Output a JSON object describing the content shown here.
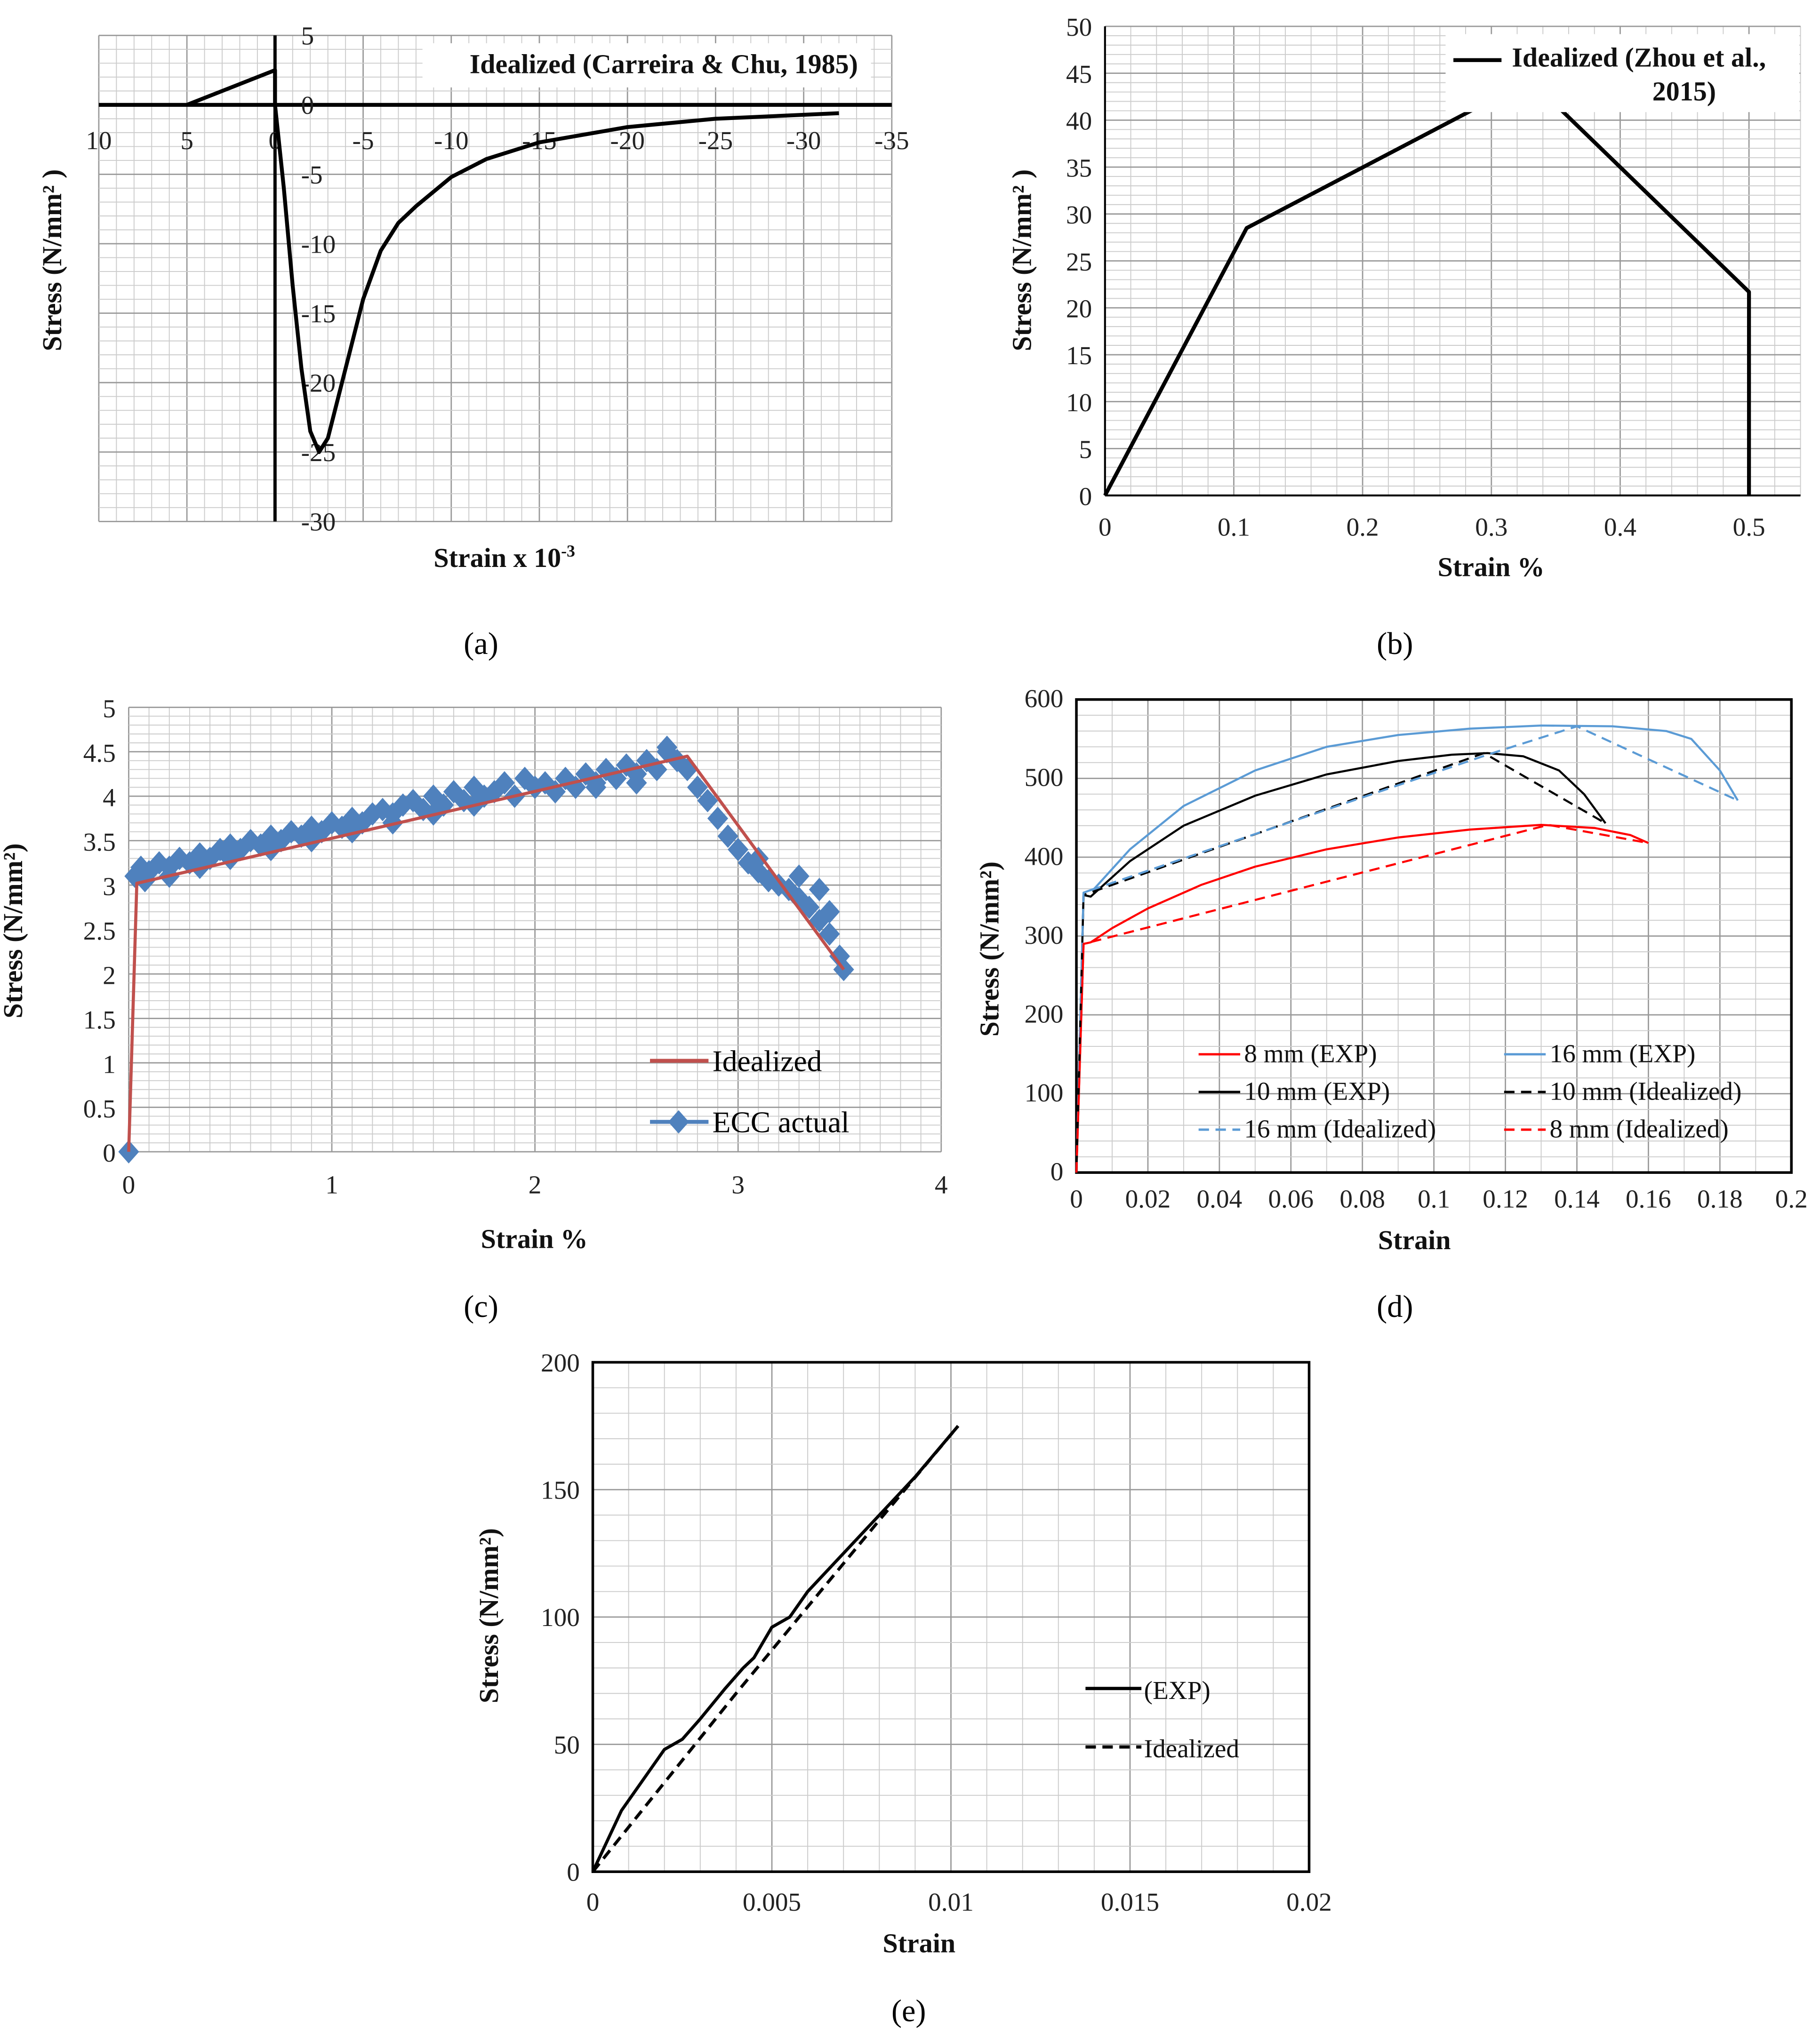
{
  "captions": [
    "(a)",
    "(b)",
    "(c)",
    "(d)",
    "(e)"
  ],
  "chart_data": [
    {
      "type": "line",
      "title": "",
      "xlabel": "Strain x 10",
      "xlabel_sup": "-3",
      "ylabel": "Stress (N/mm² )",
      "xlim": [
        10,
        -35
      ],
      "ylim": [
        -30,
        5
      ],
      "xticks": [
        "10",
        "5",
        "0",
        "-5",
        "-10",
        "-15",
        "-20",
        "-25",
        "-30",
        "-35"
      ],
      "xtick_values": [
        10,
        5,
        0,
        -5,
        -10,
        -15,
        -20,
        -25,
        -30,
        -35
      ],
      "yticks": [
        "5",
        "0",
        "-5",
        "-10",
        "-15",
        "-20",
        "-25",
        "-30"
      ],
      "ytick_values": [
        5,
        0,
        -5,
        -10,
        -15,
        -20,
        -25,
        -30
      ],
      "grid": true,
      "legend_position": "top-right",
      "series": [
        {
          "name": "Idealized (Carreira & Chu, 1985)",
          "color": "#000000",
          "dash": false,
          "x": [
            5,
            0,
            0,
            -0.5,
            -1,
            -1.5,
            -2,
            -2.5,
            -3,
            -4,
            -5,
            -6,
            -7,
            -8,
            -10,
            -12,
            -15,
            -20,
            -25,
            -32
          ],
          "y": [
            0,
            2.5,
            0,
            -6,
            -13,
            -19,
            -23.5,
            -25,
            -24,
            -19,
            -14,
            -10.5,
            -8.5,
            -7.3,
            -5.2,
            -3.9,
            -2.7,
            -1.6,
            -1,
            -0.6
          ]
        }
      ]
    },
    {
      "type": "line",
      "xlabel": "Strain %",
      "ylabel": "Stress (N/mm² )",
      "xlim": [
        0,
        0.54
      ],
      "ylim": [
        0,
        50
      ],
      "xticks": [
        "0",
        "0.1",
        "0.2",
        "0.3",
        "0.4",
        "0.5"
      ],
      "xtick_values": [
        0,
        0.1,
        0.2,
        0.3,
        0.4,
        0.5
      ],
      "yticks": [
        "0",
        "5",
        "10",
        "15",
        "20",
        "25",
        "30",
        "35",
        "40",
        "45",
        "50"
      ],
      "ytick_values": [
        0,
        5,
        10,
        15,
        20,
        25,
        30,
        35,
        40,
        45,
        50
      ],
      "grid": true,
      "legend_position": "top-right",
      "series": [
        {
          "name": "Idealized (Zhou et al.,",
          "name2": "2015)",
          "color": "#000000",
          "dash": false,
          "x": [
            0,
            0.11,
            0.33,
            0.5,
            0.5
          ],
          "y": [
            0,
            28.5,
            44.3,
            21.7,
            0
          ]
        }
      ]
    },
    {
      "type": "line",
      "xlabel": "Strain %",
      "ylabel": "Stress (N/mm²)",
      "xlim": [
        0,
        4
      ],
      "ylim": [
        0,
        5
      ],
      "xticks": [
        "0",
        "1",
        "2",
        "3",
        "4"
      ],
      "xtick_values": [
        0,
        1,
        2,
        3,
        4
      ],
      "yticks": [
        "0",
        "0.5",
        "1",
        "1.5",
        "2",
        "2.5",
        "3",
        "3.5",
        "4",
        "4.5",
        "5"
      ],
      "ytick_values": [
        0,
        0.5,
        1,
        1.5,
        2,
        2.5,
        3,
        3.5,
        4,
        4.5,
        5
      ],
      "grid": true,
      "legend_position": "bottom-right",
      "series": [
        {
          "name": "Idealized",
          "color": "#c0504d",
          "dash": false,
          "x": [
            0,
            0.04,
            2.75,
            3.52
          ],
          "y": [
            0,
            3.02,
            4.45,
            2.05
          ]
        },
        {
          "name": "ECC actual",
          "color": "#4f81bd",
          "marker": "diamond",
          "x": [
            0,
            0.03,
            0.06,
            0.1,
            0.15,
            0.2,
            0.25,
            0.3,
            0.35,
            0.4,
            0.45,
            0.5,
            0.55,
            0.6,
            0.65,
            0.7,
            0.75,
            0.8,
            0.85,
            0.9,
            0.95,
            1.0,
            1.05,
            1.1,
            1.15,
            1.2,
            1.25,
            1.3,
            1.35,
            1.4,
            1.45,
            1.5,
            1.55,
            1.6,
            1.65,
            1.7,
            1.75,
            1.8,
            1.85,
            1.9,
            1.95,
            2.0,
            2.05,
            2.1,
            2.15,
            2.2,
            2.25,
            2.3,
            2.35,
            2.4,
            2.45,
            2.5,
            2.55,
            2.6,
            2.65,
            2.7,
            2.75,
            2.8,
            2.85,
            2.9,
            2.95,
            3.0,
            3.05,
            3.1,
            3.15,
            3.2,
            3.25,
            3.3,
            3.35,
            3.4,
            3.45,
            3.5,
            3.52,
            0.08,
            0.2,
            0.35,
            0.5,
            0.7,
            0.9,
            1.1,
            1.3,
            1.5,
            1.7,
            1.9,
            2.1,
            2.3,
            2.5,
            2.65,
            3.1,
            3.3,
            3.4,
            3.45
          ],
          "y": [
            0,
            3.1,
            3.2,
            3.15,
            3.25,
            3.2,
            3.3,
            3.25,
            3.35,
            3.3,
            3.4,
            3.45,
            3.4,
            3.5,
            3.45,
            3.55,
            3.5,
            3.6,
            3.55,
            3.65,
            3.6,
            3.7,
            3.65,
            3.75,
            3.7,
            3.8,
            3.85,
            3.8,
            3.9,
            3.95,
            3.85,
            4.0,
            3.9,
            4.05,
            3.95,
            4.1,
            4.0,
            4.05,
            4.15,
            4.0,
            4.2,
            4.1,
            4.15,
            4.05,
            4.2,
            4.1,
            4.25,
            4.15,
            4.3,
            4.2,
            4.35,
            4.25,
            4.4,
            4.3,
            4.55,
            4.4,
            4.3,
            4.1,
            3.95,
            3.75,
            3.55,
            3.4,
            3.25,
            3.15,
            3.05,
            3.0,
            2.95,
            2.85,
            2.75,
            2.6,
            2.45,
            2.2,
            2.05,
            3.05,
            3.1,
            3.2,
            3.3,
            3.4,
            3.5,
            3.6,
            3.7,
            3.8,
            3.9,
            4.0,
            4.05,
            4.1,
            4.15,
            4.5,
            3.3,
            3.1,
            2.95,
            2.7
          ]
        }
      ]
    },
    {
      "type": "line",
      "xlabel": "Strain",
      "ylabel": "Stress (N/mm²)",
      "xlim": [
        0,
        0.2
      ],
      "ylim": [
        0,
        600
      ],
      "xticks": [
        "0",
        "0.02",
        "0.04",
        "0.06",
        "0.08",
        "0.1",
        "0.12",
        "0.14",
        "0.16",
        "0.18",
        "0.2"
      ],
      "xtick_values": [
        0,
        0.02,
        0.04,
        0.06,
        0.08,
        0.1,
        0.12,
        0.14,
        0.16,
        0.18,
        0.2
      ],
      "yticks": [
        "0",
        "100",
        "200",
        "300",
        "400",
        "500",
        "600"
      ],
      "ytick_values": [
        0,
        100,
        200,
        300,
        400,
        500,
        600
      ],
      "grid": true,
      "legend_position": "bottom",
      "series": [
        {
          "name": "8 mm (EXP)",
          "color": "#ff0000",
          "dash": false,
          "x": [
            0,
            0.002,
            0.004,
            0.01,
            0.02,
            0.035,
            0.05,
            0.07,
            0.09,
            0.11,
            0.13,
            0.145,
            0.155,
            0.16
          ],
          "y": [
            0,
            290,
            292,
            310,
            335,
            365,
            388,
            410,
            425,
            435,
            441,
            437,
            428,
            418
          ]
        },
        {
          "name": "16 mm (EXP)",
          "color": "#5b9bd5",
          "dash": false,
          "x": [
            0,
            0.002,
            0.005,
            0.015,
            0.03,
            0.05,
            0.07,
            0.09,
            0.11,
            0.13,
            0.15,
            0.165,
            0.172,
            0.18,
            0.185
          ],
          "y": [
            0,
            355,
            360,
            410,
            465,
            510,
            540,
            555,
            563,
            567,
            566,
            560,
            550,
            510,
            472
          ]
        },
        {
          "name": "10 mm (EXP)",
          "color": "#000000",
          "dash": false,
          "x": [
            0,
            0.002,
            0.004,
            0.015,
            0.03,
            0.05,
            0.07,
            0.09,
            0.105,
            0.115,
            0.125,
            0.135,
            0.142,
            0.148
          ],
          "y": [
            0,
            352,
            350,
            395,
            440,
            478,
            505,
            522,
            530,
            532,
            528,
            510,
            480,
            443
          ]
        },
        {
          "name": "10 mm (Idealized)",
          "color": "#000000",
          "dash": true,
          "x": [
            0,
            0.002,
            0.114,
            0.148
          ],
          "y": [
            0,
            352,
            532,
            443
          ]
        },
        {
          "name": "16 mm (Idealized)",
          "color": "#5b9bd5",
          "dash": true,
          "x": [
            0,
            0.002,
            0.115,
            0.14,
            0.185
          ],
          "y": [
            0,
            355,
            530,
            566,
            472
          ]
        },
        {
          "name": "8 mm (Idealized)",
          "color": "#ff0000",
          "dash": true,
          "x": [
            0,
            0.002,
            0.132,
            0.16
          ],
          "y": [
            0,
            290,
            441,
            418
          ]
        }
      ]
    },
    {
      "type": "line",
      "xlabel": "Strain",
      "ylabel": "Stress (N/mm²)",
      "xlim": [
        0,
        0.02
      ],
      "ylim": [
        0,
        200
      ],
      "xticks": [
        "0",
        "0.005",
        "0.01",
        "0.015",
        "0.02"
      ],
      "xtick_values": [
        0,
        0.005,
        0.01,
        0.015,
        0.02
      ],
      "yticks": [
        "0",
        "50",
        "100",
        "150",
        "200"
      ],
      "ytick_values": [
        0,
        50,
        100,
        150,
        200
      ],
      "grid": true,
      "legend_position": "right",
      "series": [
        {
          "name": "(EXP)",
          "color": "#000000",
          "dash": false,
          "x": [
            0,
            0.0004,
            0.0008,
            0.0015,
            0.002,
            0.0025,
            0.003,
            0.0037,
            0.0042,
            0.0045,
            0.005,
            0.0055,
            0.006,
            0.007,
            0.008,
            0.009,
            0.0102
          ],
          "y": [
            0,
            12,
            24,
            38,
            48,
            52,
            60,
            72,
            80,
            84,
            96,
            100,
            110,
            125,
            140,
            155,
            175
          ]
        },
        {
          "name": "Idealized",
          "color": "#000000",
          "dash": true,
          "x": [
            0,
            0.002,
            0.004,
            0.006,
            0.008,
            0.0102
          ],
          "y": [
            0,
            35,
            70,
            104,
            138,
            175
          ]
        }
      ]
    }
  ]
}
